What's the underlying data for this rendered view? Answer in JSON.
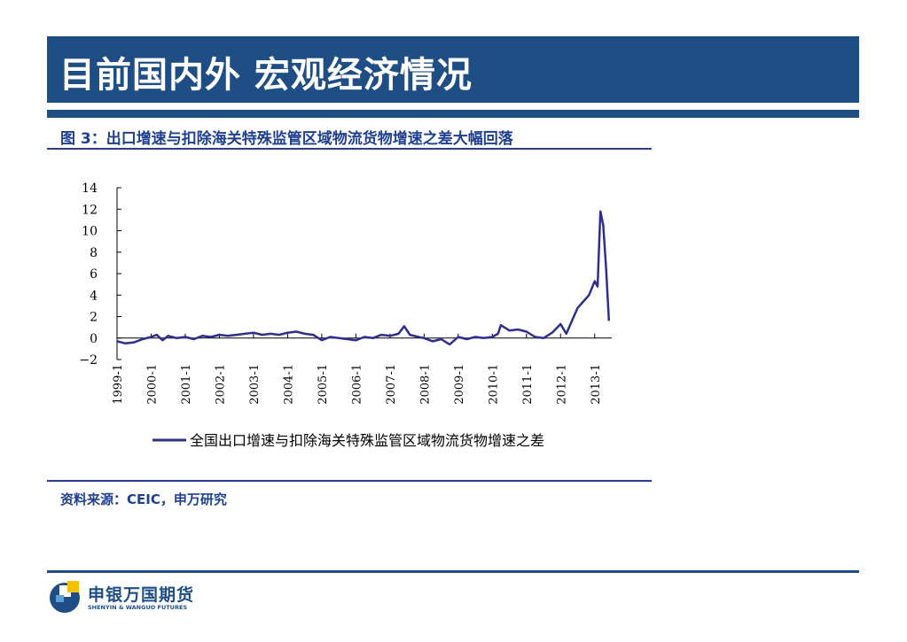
{
  "header": {
    "title": "目前国内外  宏观经济情况"
  },
  "figure": {
    "caption": "图 3：出口增速与扣除海关特殊监管区域物流货物增速之差大幅回落",
    "source": "资料来源：CEIC，申万研究"
  },
  "logo": {
    "name_cn": "申银万国期货",
    "name_en": "SHENYIN & WANGUO FUTURES"
  },
  "colors": {
    "brand": "#1f4e84",
    "line": "#2e2e8c"
  },
  "chart_data": {
    "type": "line",
    "title": "",
    "xlabel": "",
    "ylabel": "",
    "ylim": [
      -2,
      14
    ],
    "yticks": [
      14,
      12,
      10,
      8,
      6,
      4,
      2,
      0,
      -2
    ],
    "xticks": [
      "1999-1",
      "2000-1",
      "2001-1",
      "2002-1",
      "2003-1",
      "2004-1",
      "2005-1",
      "2006-1",
      "2007-1",
      "2008-1",
      "2009-1",
      "2010-1",
      "2011-1",
      "2012-1",
      "2013-1"
    ],
    "xlim": [
      "1999-1",
      "2013-7"
    ],
    "grid": false,
    "legend": "bottom",
    "series": [
      {
        "name": "全国出口增速与扣除海关特殊监管区域物流货物增速之差",
        "points": [
          [
            "1999-1",
            -0.3
          ],
          [
            "1999-4",
            -0.5
          ],
          [
            "1999-7",
            -0.4
          ],
          [
            "1999-10",
            -0.1
          ],
          [
            "2000-1",
            0.1
          ],
          [
            "2000-3",
            0.3
          ],
          [
            "2000-5",
            -0.2
          ],
          [
            "2000-7",
            0.2
          ],
          [
            "2000-10",
            0.0
          ],
          [
            "2001-1",
            0.1
          ],
          [
            "2001-4",
            -0.1
          ],
          [
            "2001-7",
            0.2
          ],
          [
            "2001-10",
            0.1
          ],
          [
            "2002-1",
            0.3
          ],
          [
            "2002-4",
            0.2
          ],
          [
            "2002-7",
            0.3
          ],
          [
            "2002-10",
            0.4
          ],
          [
            "2003-1",
            0.5
          ],
          [
            "2003-4",
            0.3
          ],
          [
            "2003-7",
            0.4
          ],
          [
            "2003-10",
            0.3
          ],
          [
            "2004-1",
            0.5
          ],
          [
            "2004-4",
            0.6
          ],
          [
            "2004-7",
            0.4
          ],
          [
            "2004-10",
            0.3
          ],
          [
            "2005-1",
            -0.2
          ],
          [
            "2005-4",
            0.1
          ],
          [
            "2005-7",
            0.0
          ],
          [
            "2005-10",
            -0.1
          ],
          [
            "2006-1",
            -0.2
          ],
          [
            "2006-4",
            0.1
          ],
          [
            "2006-7",
            0.0
          ],
          [
            "2006-10",
            0.3
          ],
          [
            "2007-1",
            0.2
          ],
          [
            "2007-4",
            0.4
          ],
          [
            "2007-6",
            1.1
          ],
          [
            "2007-8",
            0.3
          ],
          [
            "2007-11",
            0.1
          ],
          [
            "2008-1",
            0.0
          ],
          [
            "2008-4",
            -0.3
          ],
          [
            "2008-7",
            -0.1
          ],
          [
            "2008-10",
            -0.6
          ],
          [
            "2009-1",
            0.1
          ],
          [
            "2009-4",
            -0.1
          ],
          [
            "2009-7",
            0.1
          ],
          [
            "2009-10",
            0.0
          ],
          [
            "2010-1",
            0.1
          ],
          [
            "2010-3",
            0.4
          ],
          [
            "2010-4",
            1.2
          ],
          [
            "2010-7",
            0.7
          ],
          [
            "2010-10",
            0.8
          ],
          [
            "2011-1",
            0.6
          ],
          [
            "2011-4",
            0.1
          ],
          [
            "2011-7",
            0.0
          ],
          [
            "2011-10",
            0.5
          ],
          [
            "2012-1",
            1.3
          ],
          [
            "2012-3",
            0.4
          ],
          [
            "2012-5",
            1.6
          ],
          [
            "2012-7",
            2.8
          ],
          [
            "2012-9",
            3.4
          ],
          [
            "2012-11",
            4.0
          ],
          [
            "2013-1",
            5.3
          ],
          [
            "2013-2",
            4.8
          ],
          [
            "2013-3",
            11.8
          ],
          [
            "2013-4",
            10.5
          ],
          [
            "2013-5",
            6.5
          ],
          [
            "2013-6",
            1.6
          ]
        ]
      }
    ]
  }
}
